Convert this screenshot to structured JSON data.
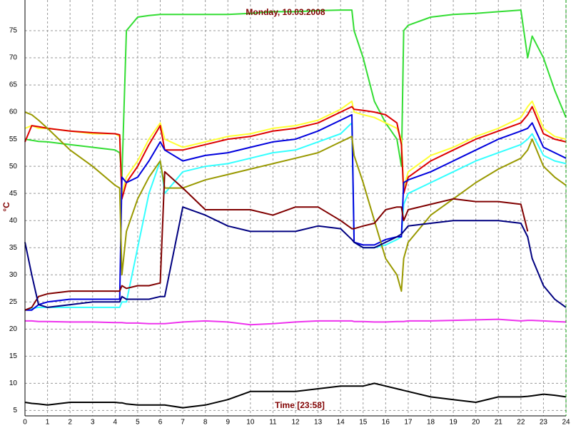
{
  "chart_data": {
    "type": "line",
    "title": "Monday, 10.03.2008",
    "y_label": "°C",
    "x_label": "Time [23:58]",
    "xlim": [
      0,
      24
    ],
    "ylim": [
      4,
      80
    ],
    "grid": true,
    "xticks": [
      0,
      1,
      2,
      3,
      4,
      5,
      6,
      7,
      8,
      9,
      10,
      11,
      12,
      13,
      14,
      15,
      16,
      17,
      18,
      19,
      20,
      21,
      22,
      23,
      24
    ],
    "yticks": [
      5,
      10,
      15,
      20,
      25,
      30,
      35,
      40,
      45,
      50,
      55,
      60,
      65,
      70,
      75
    ],
    "x": [
      0,
      0.3,
      0.6,
      1,
      2,
      3,
      4,
      4.2,
      4.3,
      4.5,
      5,
      5.5,
      6,
      6.2,
      7,
      8,
      9,
      10,
      11,
      12,
      13,
      14,
      14.5,
      14.6,
      15,
      15.5,
      16,
      16.5,
      16.7,
      16.8,
      17,
      18,
      19,
      20,
      21,
      22,
      22.3,
      22.5,
      23,
      23.5,
      24
    ],
    "series": [
      {
        "color": "#33dd33",
        "values": [
          55,
          54.8,
          54.6,
          54.5,
          54,
          53.5,
          53,
          52.5,
          48,
          75,
          77.5,
          77.8,
          78,
          78,
          78,
          78,
          78,
          78.2,
          78.5,
          78.5,
          78.7,
          78.8,
          78.8,
          75,
          70,
          62,
          58,
          55,
          50,
          75,
          76,
          77.5,
          78,
          78.2,
          78.5,
          78.8,
          70,
          74,
          70,
          64,
          59
        ]
      },
      {
        "color": "#ffff33",
        "values": [
          57,
          57.5,
          57,
          57,
          56.5,
          56,
          56,
          55.5,
          45,
          48,
          51,
          55,
          58,
          55,
          53.5,
          54.5,
          55.5,
          56,
          57,
          57.5,
          58.5,
          60.5,
          62,
          60,
          59.5,
          59,
          58,
          57,
          55,
          46,
          49,
          52,
          53.5,
          55.5,
          57,
          59,
          61,
          62,
          57,
          55.5,
          55
        ]
      },
      {
        "color": "#dd0000",
        "values": [
          54.5,
          57.5,
          57.3,
          57,
          56.5,
          56.2,
          56,
          55.8,
          44,
          47,
          50,
          54,
          57.5,
          53,
          53,
          54,
          55,
          55.5,
          56.5,
          57,
          58,
          60,
          61,
          60.5,
          60.3,
          60,
          59.5,
          58,
          54,
          45,
          48,
          51,
          53,
          55,
          56.5,
          58,
          59.5,
          61,
          56,
          55,
          54.5
        ]
      },
      {
        "color": "#33ffff",
        "values": [
          23.5,
          23.8,
          24,
          24,
          24,
          24,
          24,
          24,
          25,
          25,
          35,
          45,
          51,
          45,
          49,
          50,
          50.5,
          51.5,
          52.5,
          53,
          54.5,
          56,
          58,
          36,
          35,
          35,
          35.5,
          36.5,
          37,
          43,
          45,
          47,
          49,
          51,
          52.5,
          54,
          55,
          56,
          52,
          51,
          50.5
        ]
      },
      {
        "color": "#0000dd",
        "values": [
          23.5,
          23.5,
          24.5,
          25,
          25.5,
          25.5,
          25.5,
          25.5,
          48,
          47,
          48,
          51,
          54.5,
          53,
          51,
          52,
          52.5,
          53.5,
          54.5,
          55,
          56.5,
          58.5,
          59.5,
          36,
          35.5,
          35.5,
          36.5,
          37,
          37,
          47,
          47.5,
          49,
          51,
          53,
          55,
          56.5,
          57,
          58,
          53.5,
          52.5,
          51.5
        ]
      },
      {
        "color": "#999900",
        "values": [
          60,
          59.5,
          58.5,
          57,
          53,
          50,
          46.5,
          46,
          30,
          38,
          44,
          48,
          51,
          46,
          46,
          47.5,
          48.5,
          49.5,
          50.5,
          51.5,
          52.5,
          54.5,
          55.5,
          52,
          47,
          40,
          33,
          30,
          27,
          33,
          36,
          41,
          44,
          47,
          49.5,
          51.5,
          53,
          55,
          50,
          48,
          46.5
        ]
      },
      {
        "color": "#800000",
        "values": [
          23.5,
          24,
          26,
          26.5,
          27,
          27,
          27,
          27,
          28,
          27.5,
          28,
          28,
          28.5,
          49,
          46,
          42,
          42,
          42,
          41,
          42.5,
          42.5,
          40,
          38.5,
          38.5,
          39,
          39.5,
          42,
          42.5,
          42.5,
          40,
          42,
          43,
          44,
          43.5,
          43.5,
          43,
          38,
          null,
          null,
          null,
          null
        ]
      },
      {
        "color": "#000080",
        "values": [
          36,
          30,
          24.5,
          24,
          24.5,
          25,
          25,
          25,
          26,
          25.5,
          25.5,
          25.5,
          26,
          26,
          42.5,
          41,
          39,
          38,
          38,
          38,
          39,
          38.5,
          36.5,
          36,
          35,
          35,
          36,
          37,
          37.5,
          38,
          39,
          39.5,
          40,
          40,
          40,
          39.5,
          37,
          33,
          28,
          25.5,
          24
        ]
      },
      {
        "color": "#ee33ee",
        "values": [
          21.5,
          21.5,
          21.4,
          21.4,
          21.3,
          21.3,
          21.2,
          21.2,
          21.2,
          21.1,
          21.1,
          21,
          21,
          21,
          21.3,
          21.5,
          21.3,
          20.8,
          21,
          21.3,
          21.5,
          21.5,
          21.5,
          21.4,
          21.4,
          21.3,
          21.3,
          21.4,
          21.4,
          21.4,
          21.5,
          21.5,
          21.6,
          21.7,
          21.8,
          21.5,
          21.6,
          21.6,
          21.5,
          21.4,
          21.3
        ]
      },
      {
        "color": "#000000",
        "values": [
          6.5,
          6.3,
          6.2,
          6,
          6.5,
          6.5,
          6.5,
          6.4,
          6.4,
          6.2,
          6,
          6,
          6,
          6,
          5.5,
          6,
          7,
          8.5,
          8.5,
          8.5,
          9,
          9.5,
          9.5,
          9.5,
          9.5,
          10,
          9.5,
          9,
          8.8,
          8.7,
          8.5,
          7.5,
          7,
          6.5,
          7.5,
          7.5,
          7.6,
          7.7,
          8,
          7.8,
          7.5
        ]
      }
    ]
  }
}
